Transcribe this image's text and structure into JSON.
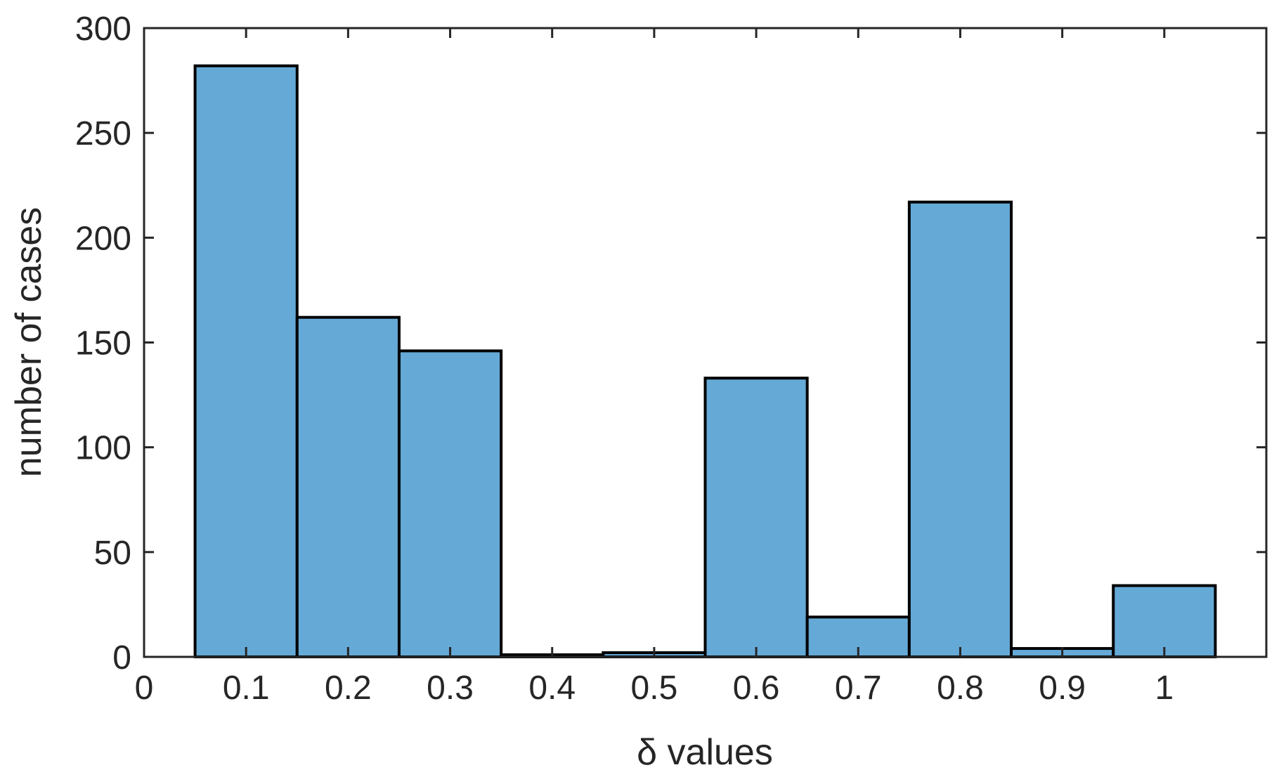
{
  "chart_data": {
    "type": "bar",
    "title": "",
    "xlabel": "δ values",
    "ylabel": "number of cases",
    "categories": [
      "0.1",
      "0.2",
      "0.3",
      "0.4",
      "0.5",
      "0.6",
      "0.7",
      "0.8",
      "0.9",
      "1"
    ],
    "bin_centers": [
      0.1,
      0.2,
      0.3,
      0.4,
      0.5,
      0.6,
      0.7,
      0.8,
      0.9,
      1.0
    ],
    "bin_width": 0.1,
    "values": [
      282,
      162,
      146,
      1,
      2,
      133,
      19,
      217,
      4,
      34
    ],
    "xlim": [
      0,
      1.1
    ],
    "ylim": [
      0,
      300
    ],
    "xticks": [
      0,
      0.1,
      0.2,
      0.3,
      0.4,
      0.5,
      0.6,
      0.7,
      0.8,
      0.9,
      1
    ],
    "xtick_labels": [
      "0",
      "0.1",
      "0.2",
      "0.3",
      "0.4",
      "0.5",
      "0.6",
      "0.7",
      "0.8",
      "0.9",
      "1"
    ],
    "yticks": [
      0,
      50,
      100,
      150,
      200,
      250,
      300
    ],
    "ytick_labels": [
      "0",
      "50",
      "100",
      "150",
      "200",
      "250",
      "300"
    ],
    "bar_color": "#65a9d7",
    "edge_color": "#000000",
    "grid": false,
    "legend": "none"
  }
}
